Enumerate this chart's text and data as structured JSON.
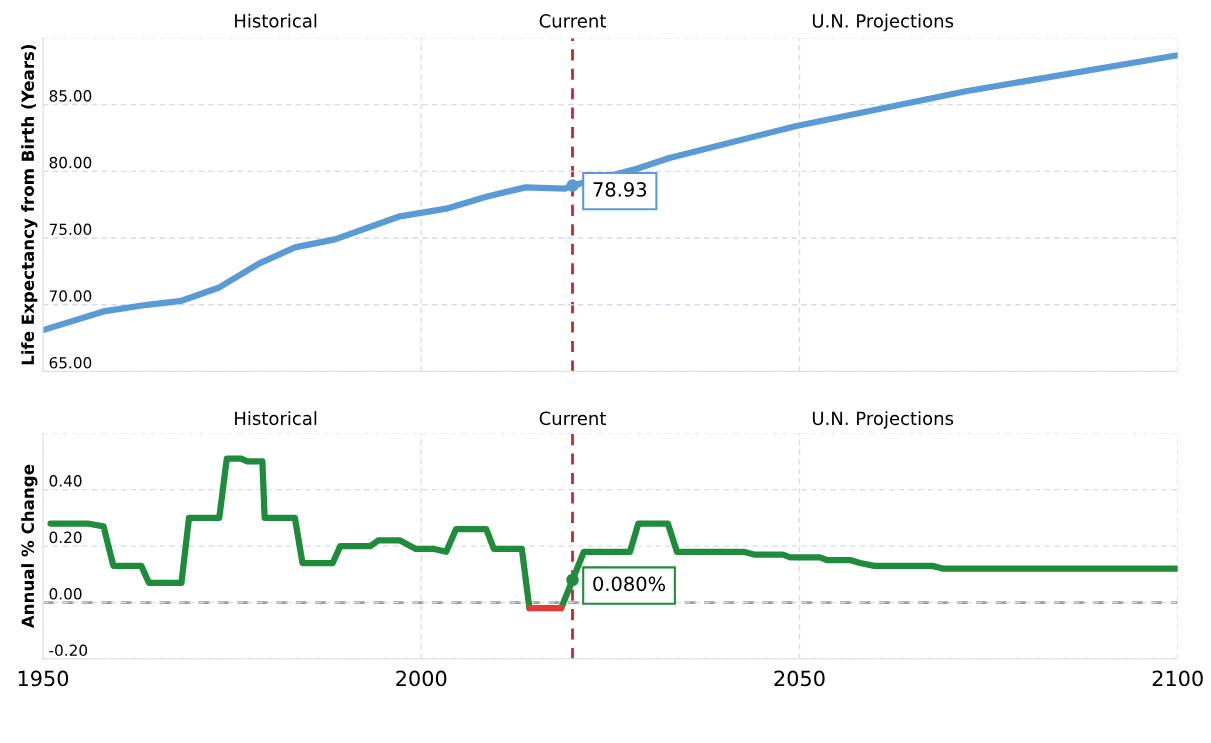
{
  "chart_data": [
    {
      "type": "line",
      "ylabel": "Life Expectancy from Birth (Years)",
      "xlim": [
        1950,
        2100
      ],
      "xticks": [
        1950,
        2000,
        2050,
        2100
      ],
      "ylim": [
        65,
        90
      ],
      "yticks": [
        {
          "value": 65,
          "label": "65.00"
        },
        {
          "value": 70,
          "label": "70.00"
        },
        {
          "value": 75,
          "label": "75.00"
        },
        {
          "value": 80,
          "label": "80.00"
        },
        {
          "value": 85,
          "label": "85.00"
        },
        {
          "value": 90,
          "label": null
        }
      ],
      "tick_labels": "y",
      "grid": true,
      "series": [
        {
          "color": "#5b9bd5",
          "x": [
            1950,
            1958,
            1963.8,
            1968.3,
            1973.3,
            1978.6,
            1983.3,
            1988.6,
            1997,
            2003.3,
            2008.6,
            2013.8,
            2019,
            2020,
            2028.5,
            2032.8,
            2049.6,
            2072,
            2100
          ],
          "values": [
            68.1,
            69.5,
            70.0,
            70.3,
            71.3,
            73.1,
            74.3,
            74.9,
            76.6,
            77.2,
            78.1,
            78.8,
            78.7,
            78.93,
            80.2,
            81.0,
            83.4,
            86.0,
            88.7
          ]
        }
      ],
      "ref_lines": [
        {
          "axis": "x",
          "value": 2020,
          "label": "Current",
          "color": "#c62828",
          "line_style": "dashed"
        }
      ],
      "annotations": [
        "Historical",
        "U.N. Projections",
        {
          "text": "78.93",
          "x": 2020,
          "y": 78.93
        }
      ]
    },
    {
      "type": "line",
      "ylabel": "Annual % Change",
      "xlim": [
        1950,
        2100
      ],
      "xticks": [
        1950,
        2000,
        2050,
        2100
      ],
      "ylim": [
        -0.2,
        0.6
      ],
      "yticks": [
        {
          "value": -0.2,
          "label": "-0.20"
        },
        {
          "value": 0,
          "label": "0.00"
        },
        {
          "value": 0.2,
          "label": "0.20"
        },
        {
          "value": 0.4,
          "label": "0.40"
        },
        {
          "value": 0.6,
          "label": null
        }
      ],
      "grid": true,
      "series": [
        {
          "color": "#1e8c3a",
          "x": [
            1951,
            1955.9,
            1958,
            1959.3,
            1963,
            1964,
            1968.3,
            1969.3,
            1973.3,
            1974.3,
            1976.2,
            1977,
            1979,
            1979.3,
            1983.3,
            1984.3,
            1988.3,
            1989.3,
            1993.3,
            1994.3,
            1997.2,
            1999.3,
            2001.7,
            2003.3,
            2004.6,
            2008.6,
            2009.6,
            2013.3,
            2014.3,
            2016,
            2018.5,
            2020,
            2021.5,
            2027.6,
            2028.7,
            2032.6,
            2033.8,
            2042.6,
            2044,
            2047.8,
            2048.8,
            2052.7,
            2053.7,
            2056.8,
            2058,
            2059.9,
            2067.6,
            2069,
            2100
          ],
          "values": [
            0.28,
            0.28,
            0.27,
            0.13,
            0.13,
            0.07,
            0.07,
            0.3,
            0.3,
            0.51,
            0.51,
            0.5,
            0.5,
            0.3,
            0.3,
            0.14,
            0.14,
            0.2,
            0.2,
            0.22,
            0.22,
            0.19,
            0.19,
            0.18,
            0.26,
            0.26,
            0.19,
            0.19,
            -0.02,
            null,
            -0.02,
            0.08,
            0.18,
            0.18,
            0.28,
            0.28,
            0.18,
            0.18,
            0.17,
            0.17,
            0.16,
            0.16,
            0.15,
            0.15,
            0.14,
            0.13,
            0.13,
            0.12,
            0.12
          ]
        },
        {
          "color": "#e53935",
          "x": [
            2014.3,
            2018.5
          ],
          "values": [
            -0.02,
            -0.02
          ]
        }
      ],
      "ref_lines": [
        {
          "axis": "x",
          "value": 2020,
          "label": "Current",
          "color": "#c62828",
          "line_style": "dashed"
        },
        {
          "axis": "y",
          "value": 0,
          "label": null,
          "color": "#9e9e9e",
          "line_style": "dashed"
        }
      ],
      "annotations": [
        "Historical",
        "U.N. Projections",
        {
          "text": "0.080%",
          "x": 2020,
          "y": 0.08
        }
      ]
    }
  ]
}
